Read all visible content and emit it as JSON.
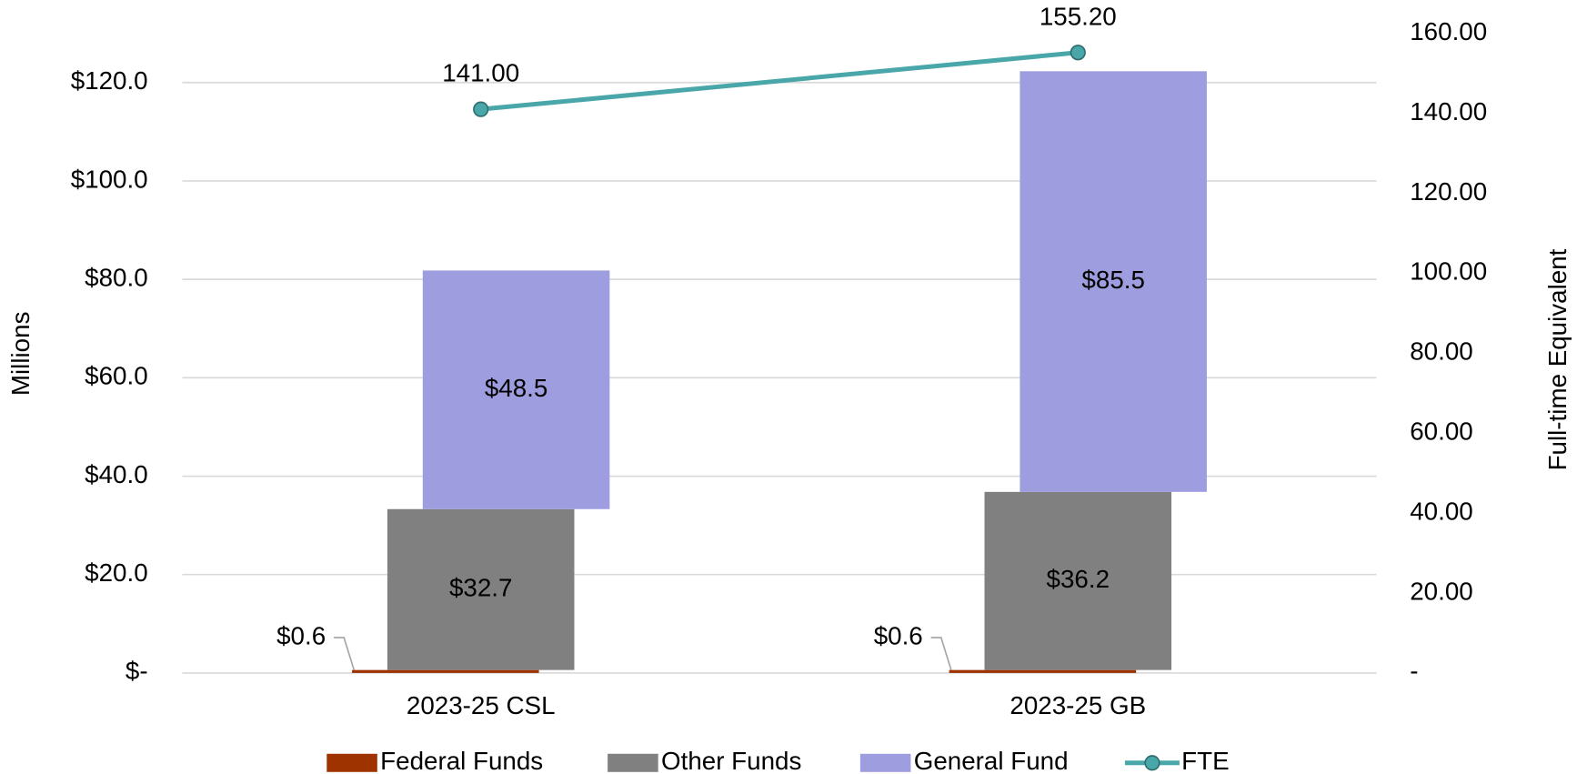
{
  "chart_data": {
    "type": "bar",
    "categories": [
      "2023-25 CSL",
      "2023-25 GB"
    ],
    "ylabel": "Millions",
    "y2label": "Full-time Equivalent",
    "ylim": [
      0,
      130
    ],
    "yticks": [
      {
        "value": 0,
        "label": "$-"
      },
      {
        "value": 20,
        "label": "$20.0"
      },
      {
        "value": 40,
        "label": "$40.0"
      },
      {
        "value": 60,
        "label": "$60.0"
      },
      {
        "value": 80,
        "label": "$80.0"
      },
      {
        "value": 100,
        "label": "$100.0"
      },
      {
        "value": 120,
        "label": "$120.0"
      }
    ],
    "y2lim": [
      0,
      160
    ],
    "y2ticks": [
      {
        "value": 0,
        "label": "-"
      },
      {
        "value": 20,
        "label": "20.00"
      },
      {
        "value": 40,
        "label": "40.00"
      },
      {
        "value": 60,
        "label": "60.00"
      },
      {
        "value": 80,
        "label": "80.00"
      },
      {
        "value": 100,
        "label": "100.00"
      },
      {
        "value": 120,
        "label": "120.00"
      },
      {
        "value": 140,
        "label": "140.00"
      },
      {
        "value": 160,
        "label": "160.00"
      }
    ],
    "grid": true,
    "stacked": true,
    "legend": "bottom",
    "series": [
      {
        "name": "Federal Funds",
        "color": "#9e3300",
        "values": [
          0.6,
          0.6
        ],
        "value_labels": [
          "$0.6",
          "$0.6"
        ]
      },
      {
        "name": "Other Funds",
        "color": "#808080",
        "values": [
          32.7,
          36.2
        ],
        "value_labels": [
          "$32.7",
          "$36.2"
        ]
      },
      {
        "name": "General Fund",
        "color": "#9e9ddf",
        "values": [
          48.5,
          85.5
        ],
        "value_labels": [
          "$48.5",
          "$85.5"
        ]
      },
      {
        "name": "FTE",
        "type": "line",
        "axis": "y2",
        "color": "#4aa7a9",
        "values": [
          141.0,
          155.2
        ],
        "value_labels": [
          "141.00",
          "155.20"
        ]
      }
    ]
  }
}
